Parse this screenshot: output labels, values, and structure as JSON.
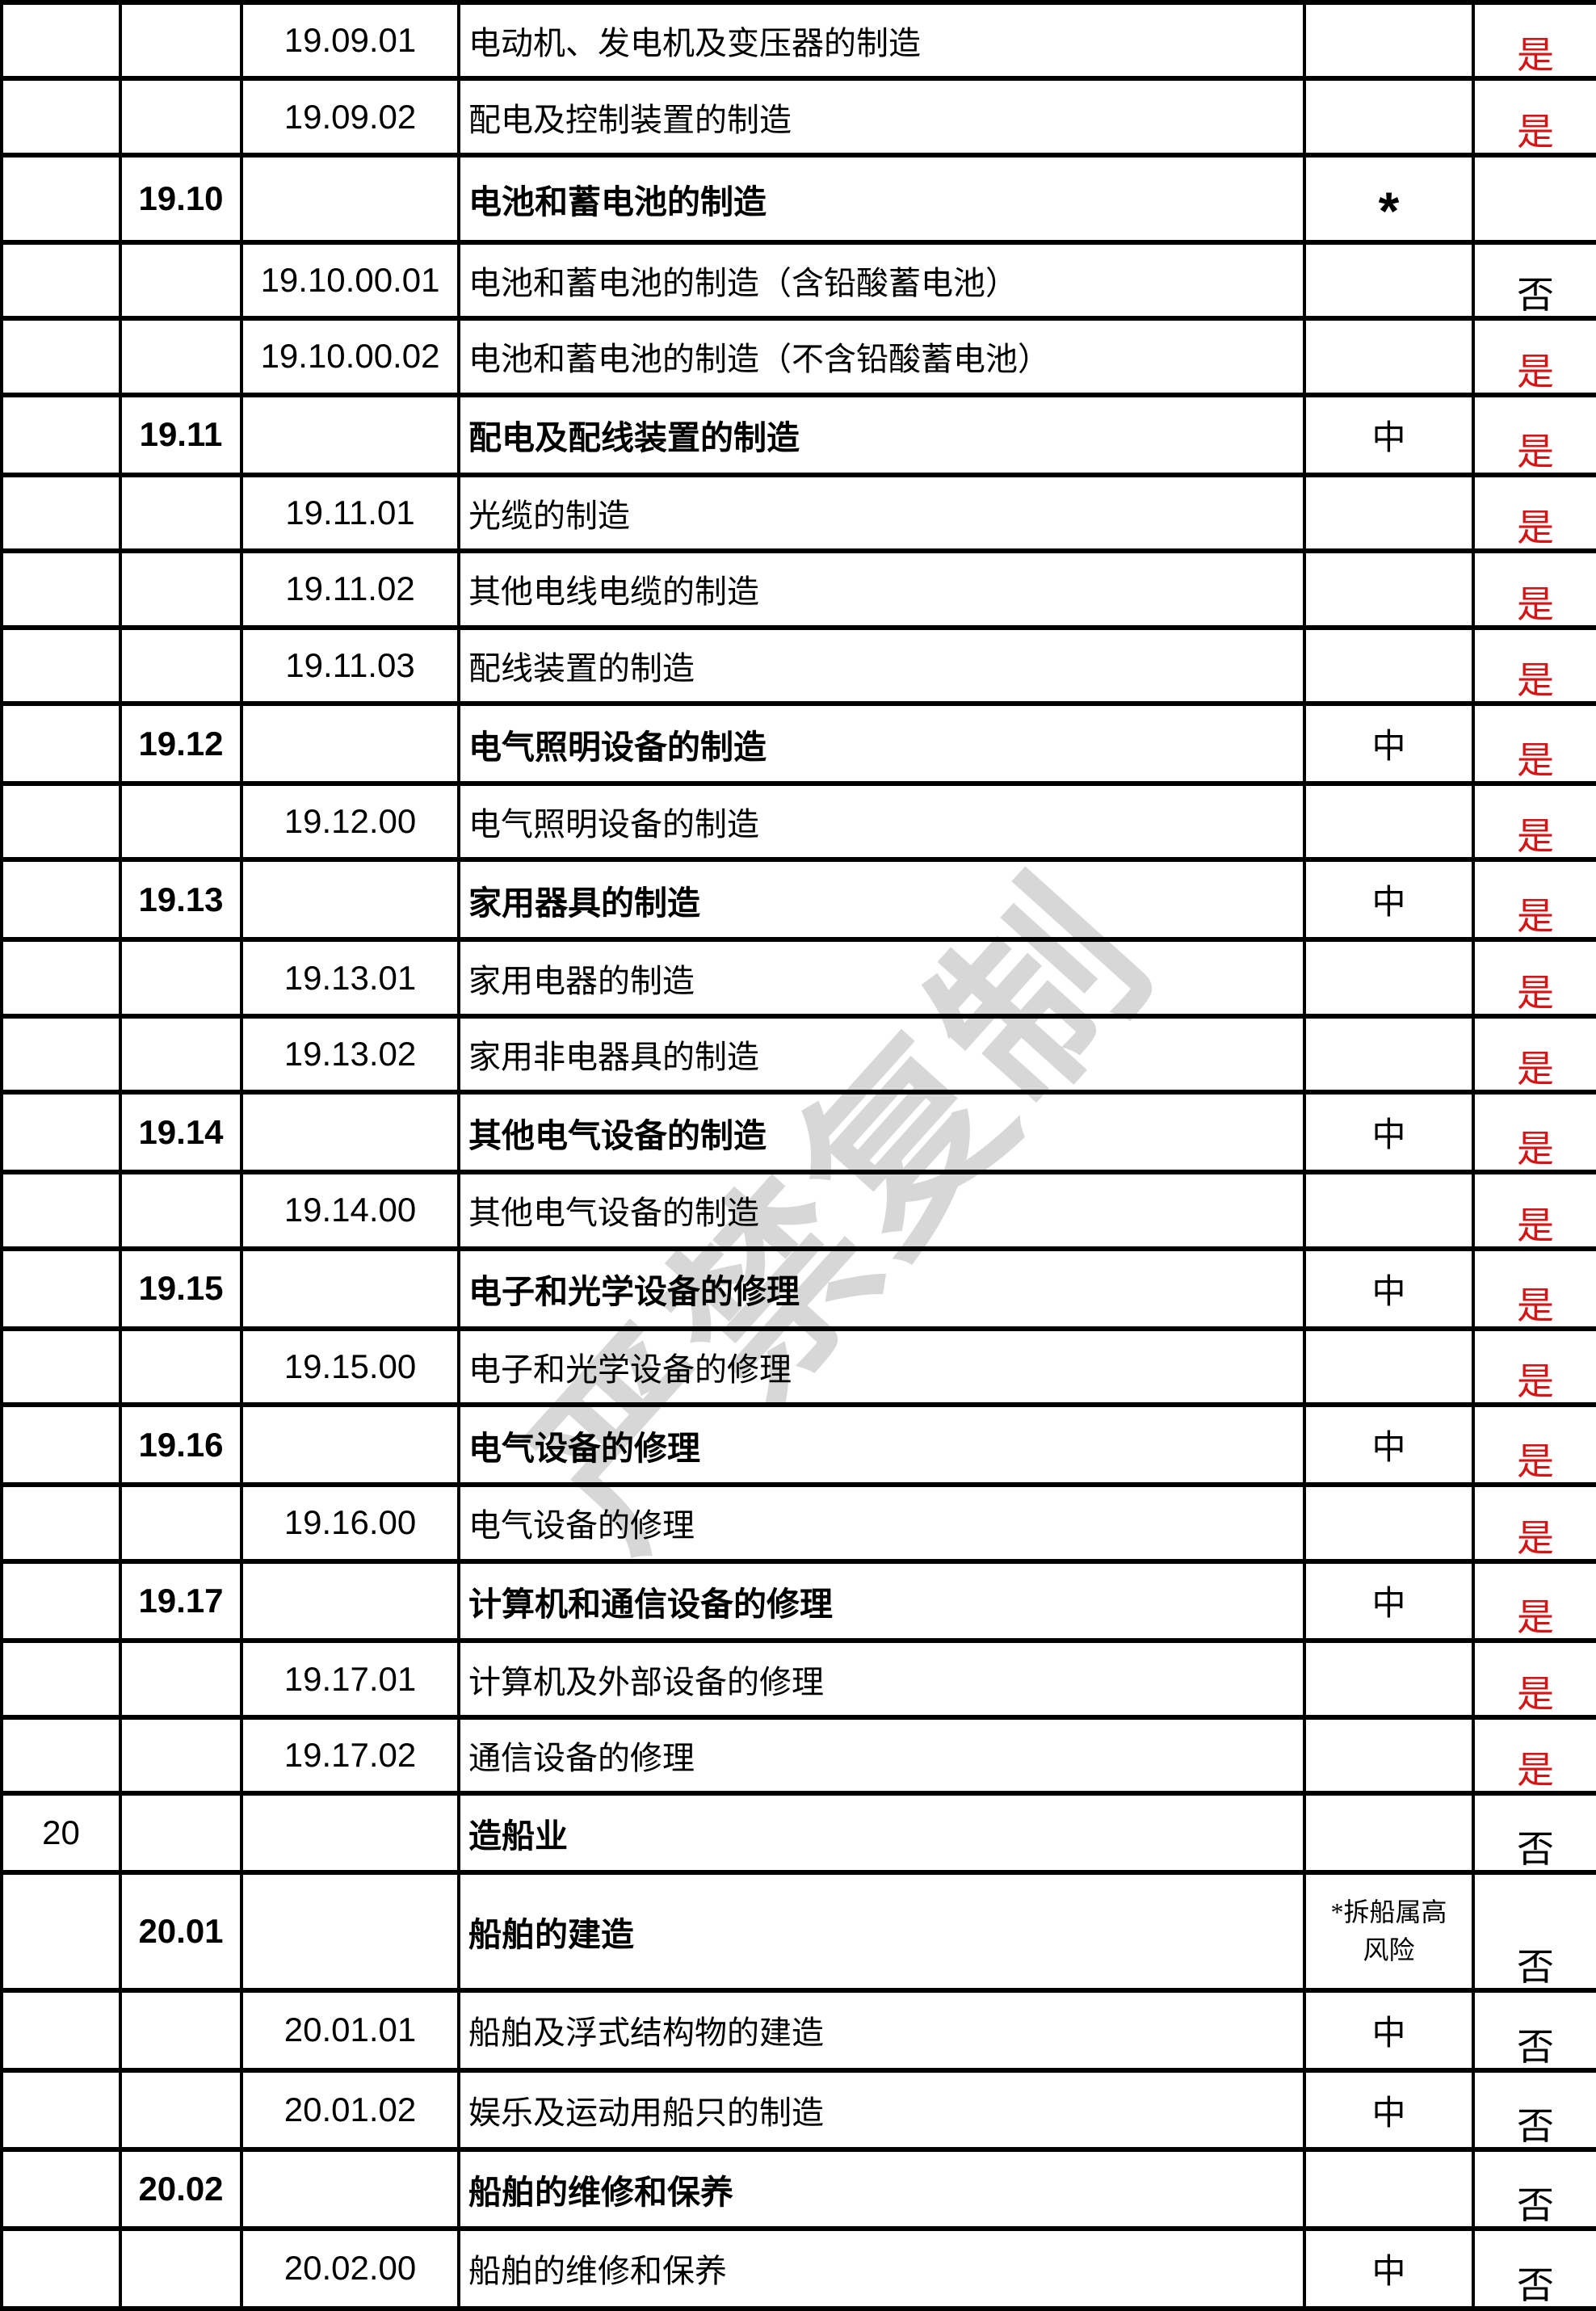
{
  "watermark": {
    "text": "严禁复制"
  },
  "colors": {
    "answer_yes_red": "#d51515",
    "answer_no_black": "#000000",
    "border_black": "#000000",
    "watermark_gray": "#d7d7d7"
  },
  "risk_marks": {
    "asterisk": "*",
    "medium": "中"
  },
  "table": {
    "rows": [
      {
        "no": "",
        "code": "",
        "subcode": "19.09.01",
        "description": "电动机、发电机及变压器的制造",
        "header": "",
        "risk": "",
        "risk_lines": null,
        "answer": "是",
        "answer_color": "red"
      },
      {
        "no": "",
        "code": "",
        "subcode": "19.09.02",
        "description": "配电及控制装置的制造",
        "header": "",
        "risk": "",
        "risk_lines": null,
        "answer": "是",
        "answer_color": "red"
      },
      {
        "no": "",
        "code": "19.10",
        "subcode": "",
        "description": "电池和蓄电池的制造",
        "header": "sans",
        "risk": "*",
        "risk_lines": null,
        "answer": "",
        "answer_color": "black"
      },
      {
        "no": "",
        "code": "",
        "subcode": "19.10.00.01",
        "description": "电池和蓄电池的制造（含铅酸蓄电池）",
        "header": "",
        "risk": "",
        "risk_lines": null,
        "answer": "否",
        "answer_color": "black"
      },
      {
        "no": "",
        "code": "",
        "subcode": "19.10.00.02",
        "description": "电池和蓄电池的制造（不含铅酸蓄电池）",
        "header": "",
        "risk": "",
        "risk_lines": null,
        "answer": "是",
        "answer_color": "red"
      },
      {
        "no": "",
        "code": "19.11",
        "subcode": "",
        "description": "配电及配线装置的制造",
        "header": "sans",
        "risk": "中",
        "risk_lines": null,
        "answer": "是",
        "answer_color": "red"
      },
      {
        "no": "",
        "code": "",
        "subcode": "19.11.01",
        "description": "光缆的制造",
        "header": "",
        "risk": "",
        "risk_lines": null,
        "answer": "是",
        "answer_color": "red"
      },
      {
        "no": "",
        "code": "",
        "subcode": "19.11.02",
        "description": "其他电线电缆的制造",
        "header": "",
        "risk": "",
        "risk_lines": null,
        "answer": "是",
        "answer_color": "red"
      },
      {
        "no": "",
        "code": "",
        "subcode": "19.11.03",
        "description": "配线装置的制造",
        "header": "",
        "risk": "",
        "risk_lines": null,
        "answer": "是",
        "answer_color": "red"
      },
      {
        "no": "",
        "code": "19.12",
        "subcode": "",
        "description": "电气照明设备的制造",
        "header": "sans",
        "risk": "中",
        "risk_lines": null,
        "answer": "是",
        "answer_color": "red"
      },
      {
        "no": "",
        "code": "",
        "subcode": "19.12.00",
        "description": "电气照明设备的制造",
        "header": "",
        "risk": "",
        "risk_lines": null,
        "answer": "是",
        "answer_color": "red"
      },
      {
        "no": "",
        "code": "19.13",
        "subcode": "",
        "description": "家用器具的制造",
        "header": "sans",
        "risk": "中",
        "risk_lines": null,
        "answer": "是",
        "answer_color": "red"
      },
      {
        "no": "",
        "code": "",
        "subcode": "19.13.01",
        "description": "家用电器的制造",
        "header": "",
        "risk": "",
        "risk_lines": null,
        "answer": "是",
        "answer_color": "red"
      },
      {
        "no": "",
        "code": "",
        "subcode": "19.13.02",
        "description": "家用非电器具的制造",
        "header": "",
        "risk": "",
        "risk_lines": null,
        "answer": "是",
        "answer_color": "red"
      },
      {
        "no": "",
        "code": "19.14",
        "subcode": "",
        "description": "其他电气设备的制造",
        "header": "sans",
        "risk": "中",
        "risk_lines": null,
        "answer": "是",
        "answer_color": "red"
      },
      {
        "no": "",
        "code": "",
        "subcode": "19.14.00",
        "description": "其他电气设备的制造",
        "header": "",
        "risk": "",
        "risk_lines": null,
        "answer": "是",
        "answer_color": "red"
      },
      {
        "no": "",
        "code": "19.15",
        "subcode": "",
        "description": "电子和光学设备的修理",
        "header": "sans",
        "risk": "中",
        "risk_lines": null,
        "answer": "是",
        "answer_color": "red"
      },
      {
        "no": "",
        "code": "",
        "subcode": "19.15.00",
        "description": "电子和光学设备的修理",
        "header": "",
        "risk": "",
        "risk_lines": null,
        "answer": "是",
        "answer_color": "red"
      },
      {
        "no": "",
        "code": "19.16",
        "subcode": "",
        "description": "电气设备的修理",
        "header": "sans",
        "risk": "中",
        "risk_lines": null,
        "answer": "是",
        "answer_color": "red"
      },
      {
        "no": "",
        "code": "",
        "subcode": "19.16.00",
        "description": "电气设备的修理",
        "header": "",
        "risk": "",
        "risk_lines": null,
        "answer": "是",
        "answer_color": "red"
      },
      {
        "no": "",
        "code": "19.17",
        "subcode": "",
        "description": "计算机和通信设备的修理",
        "header": "sans",
        "risk": "中",
        "risk_lines": null,
        "answer": "是",
        "answer_color": "red"
      },
      {
        "no": "",
        "code": "",
        "subcode": "19.17.01",
        "description": "计算机及外部设备的修理",
        "header": "",
        "risk": "",
        "risk_lines": null,
        "answer": "是",
        "answer_color": "red"
      },
      {
        "no": "",
        "code": "",
        "subcode": "19.17.02",
        "description": "通信设备的修理",
        "header": "",
        "risk": "",
        "risk_lines": null,
        "answer": "是",
        "answer_color": "red"
      },
      {
        "no": "20",
        "code": "",
        "subcode": "",
        "description": "造船业",
        "header": "serif",
        "risk": "",
        "risk_lines": null,
        "answer": "否",
        "answer_color": "black"
      },
      {
        "no": "",
        "code": "20.01",
        "subcode": "",
        "description": "船舶的建造",
        "header": "serif",
        "risk": "",
        "risk_lines": [
          "*拆船属高",
          "风险"
        ],
        "answer": "否",
        "answer_color": "black"
      },
      {
        "no": "",
        "code": "",
        "subcode": "20.01.01",
        "description": "船舶及浮式结构物的建造",
        "header": "",
        "risk": "中",
        "risk_lines": null,
        "answer": "否",
        "answer_color": "black"
      },
      {
        "no": "",
        "code": "",
        "subcode": "20.01.02",
        "description": "娱乐及运动用船只的制造",
        "header": "",
        "risk": "中",
        "risk_lines": null,
        "answer": "否",
        "answer_color": "black"
      },
      {
        "no": "",
        "code": "20.02",
        "subcode": "",
        "description": "船舶的维修和保养",
        "header": "serif",
        "risk": "",
        "risk_lines": null,
        "answer": "否",
        "answer_color": "black"
      },
      {
        "no": "",
        "code": "",
        "subcode": "20.02.00",
        "description": "船舶的维修和保养",
        "header": "",
        "risk": "中",
        "risk_lines": null,
        "answer": "否",
        "answer_color": "black"
      }
    ]
  }
}
